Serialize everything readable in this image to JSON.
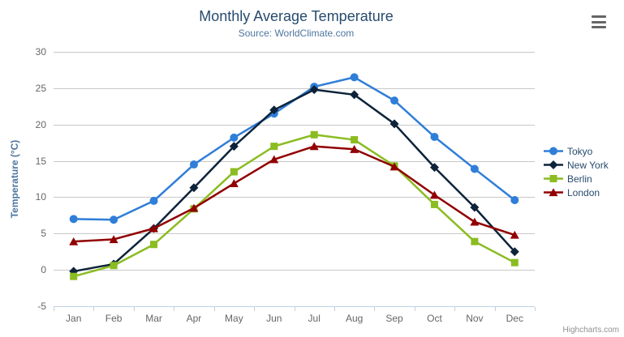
{
  "chart_data": {
    "type": "line",
    "title": "Monthly Average Temperature",
    "subtitle": "Source: WorldClimate.com",
    "xlabel": "",
    "ylabel": "Temperature (°C)",
    "ylim": [
      -5,
      30
    ],
    "yticks": [
      -5,
      0,
      5,
      10,
      15,
      20,
      25,
      30
    ],
    "grid": true,
    "legend_position": "right",
    "categories": [
      "Jan",
      "Feb",
      "Mar",
      "Apr",
      "May",
      "Jun",
      "Jul",
      "Aug",
      "Sep",
      "Oct",
      "Nov",
      "Dec"
    ],
    "series": [
      {
        "name": "Tokyo",
        "color": "#2f7ed8",
        "marker": "circle",
        "values": [
          7.0,
          6.9,
          9.5,
          14.5,
          18.2,
          21.5,
          25.2,
          26.5,
          23.3,
          18.3,
          13.9,
          9.6
        ]
      },
      {
        "name": "New York",
        "color": "#0d233a",
        "marker": "diamond",
        "values": [
          -0.2,
          0.8,
          5.7,
          11.3,
          17.0,
          22.0,
          24.8,
          24.1,
          20.1,
          14.1,
          8.6,
          2.5
        ]
      },
      {
        "name": "Berlin",
        "color": "#8bbc21",
        "marker": "square",
        "values": [
          -0.9,
          0.6,
          3.5,
          8.4,
          13.5,
          17.0,
          18.6,
          17.9,
          14.3,
          9.0,
          3.9,
          1.0
        ]
      },
      {
        "name": "London",
        "color": "#910000",
        "marker": "triangle",
        "values": [
          3.9,
          4.2,
          5.7,
          8.5,
          11.9,
          15.2,
          17.0,
          16.6,
          14.2,
          10.3,
          6.6,
          4.8
        ]
      }
    ]
  },
  "credits": {
    "text": "Highcharts.com"
  },
  "colors": {
    "title": "#274b6d",
    "subtitle": "#4d759e",
    "axis_title": "#4d759e",
    "axis_labels": "#666666",
    "grid_line": "#c8c8c8",
    "axis_line": "#c0d0e0",
    "legend_text": "#274b6d",
    "credits_text": "#909090",
    "menu_icon": "#666666"
  }
}
